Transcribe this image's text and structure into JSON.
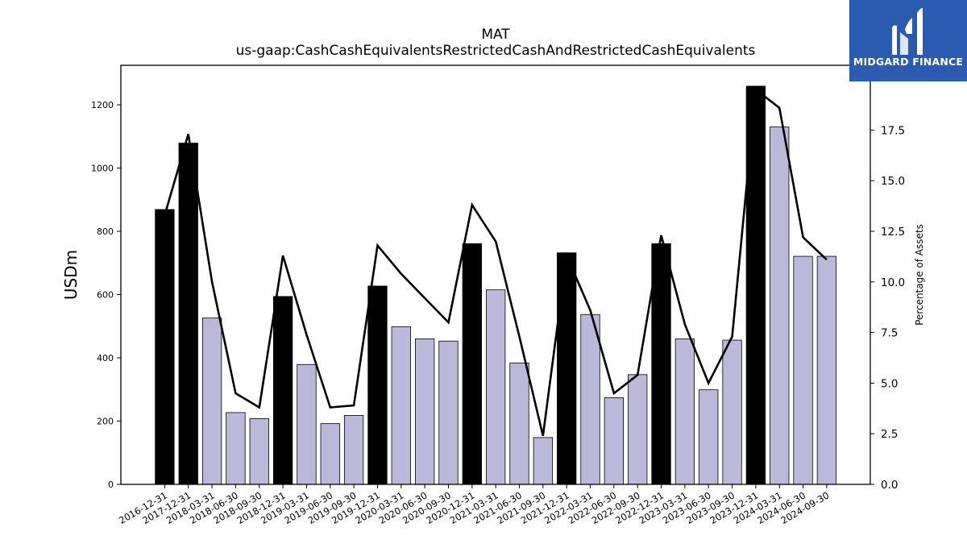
{
  "chart_data": {
    "type": "bar",
    "title": "MAT",
    "subtitle": "us-gaap:CashCashEquivalentsRestrictedCashAndRestrictedCashEquivalents",
    "ylabel": "USDm",
    "y2label": "Percentage of Assets",
    "ylim": [
      0,
      1325
    ],
    "y2lim": [
      0,
      20.7
    ],
    "yticks": [
      0,
      200,
      400,
      600,
      800,
      1000,
      1200
    ],
    "y2ticks": [
      "0.0",
      "2.5",
      "5.0",
      "7.5",
      "10.0",
      "12.5",
      "15.0",
      "17.5"
    ],
    "categories": [
      "2016-12-31",
      "2017-12-31",
      "2018-03-31",
      "2018-06-30",
      "2018-09-30",
      "2018-12-31",
      "2019-03-31",
      "2019-06-30",
      "2019-09-30",
      "2019-12-31",
      "2020-03-31",
      "2020-06-30",
      "2020-09-30",
      "2020-12-31",
      "2021-03-31",
      "2021-06-30",
      "2021-09-30",
      "2021-12-31",
      "2022-03-31",
      "2022-06-30",
      "2022-09-30",
      "2022-12-31",
      "2023-03-31",
      "2023-06-30",
      "2023-09-30",
      "2023-12-31",
      "2024-03-31",
      "2024-06-30",
      "2024-09-30"
    ],
    "series": [
      {
        "kind": "bar",
        "values": [
          869,
          1079,
          526,
          227,
          208,
          594,
          379,
          192,
          218,
          627,
          498,
          460,
          453,
          761,
          615,
          384,
          148,
          732,
          537,
          274,
          347,
          761,
          460,
          299,
          456,
          1259,
          1130,
          721,
          721
        ]
      },
      {
        "kind": "line",
        "axis": "right",
        "values": [
          13.3,
          17.3,
          10.0,
          4.5,
          3.8,
          11.3,
          7.4,
          3.8,
          3.9,
          11.8,
          10.4,
          9.2,
          8.0,
          13.8,
          12.0,
          7.3,
          2.4,
          11.3,
          8.6,
          4.5,
          5.4,
          12.3,
          7.9,
          5.0,
          7.3,
          19.5,
          18.6,
          12.2,
          11.1
        ]
      }
    ],
    "bar_colors": {
      "year_end": "#000000",
      "quarter": "#bcb8da",
      "edge": "#000000",
      "line": "#000000"
    },
    "year_end_flags": [
      true,
      true,
      false,
      false,
      false,
      true,
      false,
      false,
      false,
      true,
      false,
      false,
      false,
      true,
      false,
      false,
      false,
      true,
      false,
      false,
      false,
      true,
      false,
      false,
      false,
      true,
      false,
      false,
      false
    ]
  },
  "logo": {
    "brand": "MIDGARD FINANCE",
    "icon": "midgard-m-logo-icon",
    "background": "#2a5bb0"
  }
}
